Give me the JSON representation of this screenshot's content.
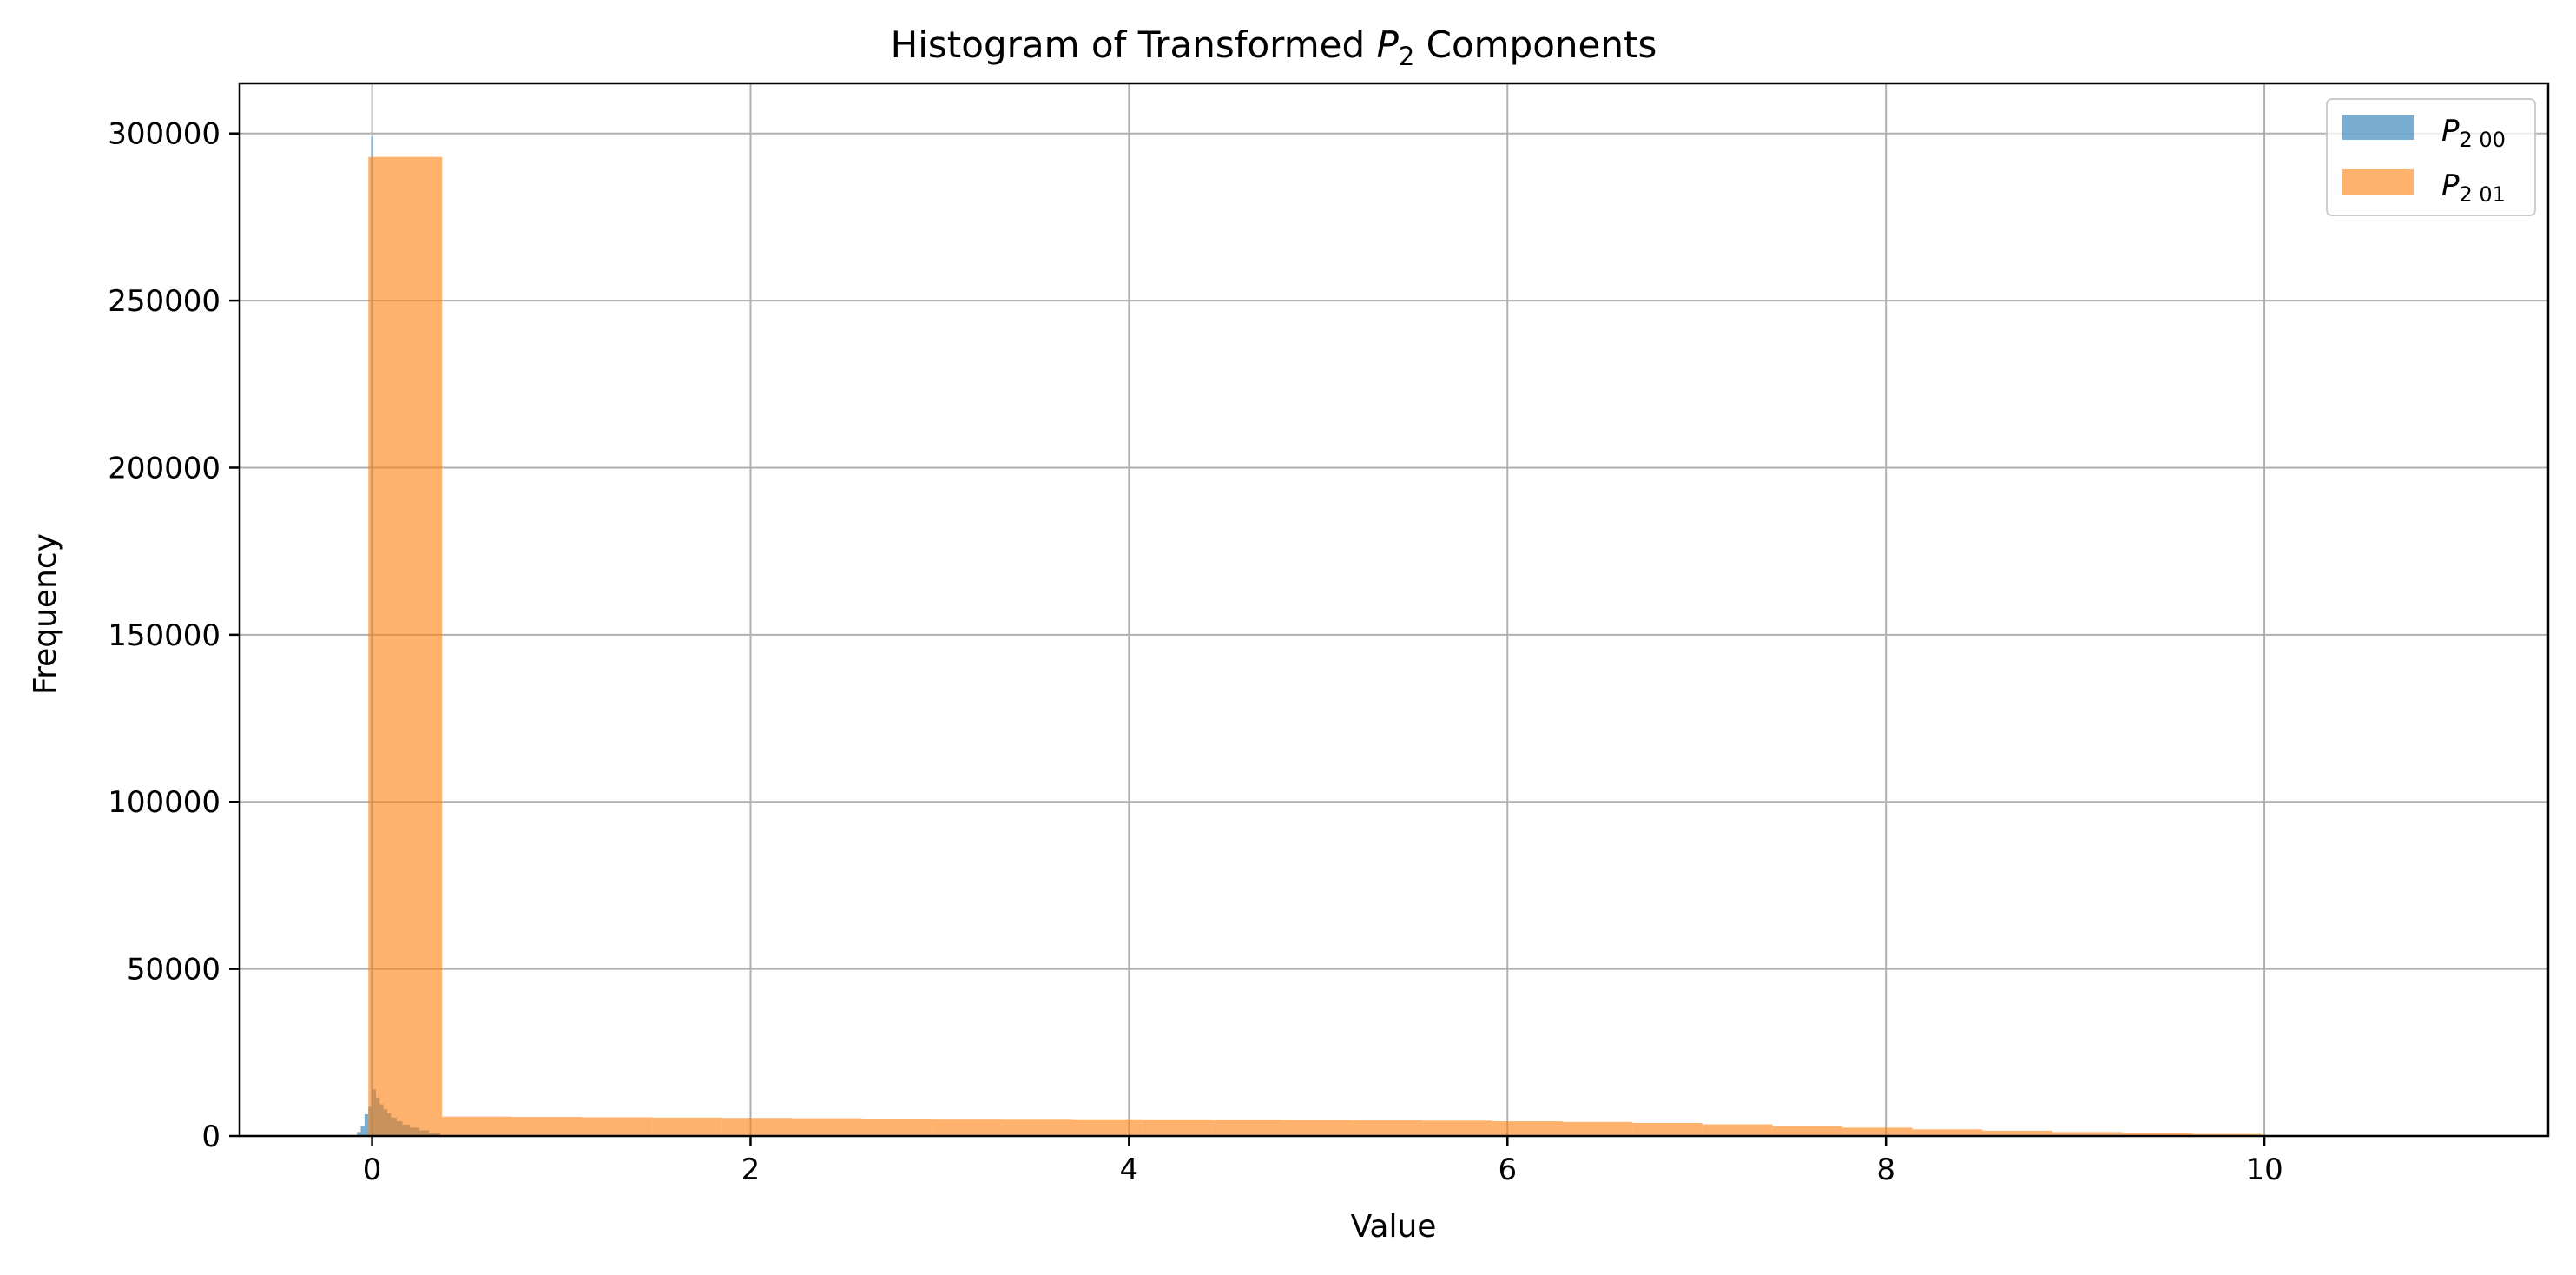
{
  "chart_data": {
    "type": "bar",
    "title_prefix": "Histogram of Transformed ",
    "title_var": "P",
    "title_sub": "2",
    "title_suffix": " Components",
    "xlabel": "Value",
    "ylabel": "Frequency",
    "xlim": [
      -0.7,
      11.5
    ],
    "ylim": [
      0,
      315000
    ],
    "xticks": [
      0,
      2,
      4,
      6,
      8,
      10
    ],
    "yticks": [
      0,
      50000,
      100000,
      150000,
      200000,
      250000,
      300000
    ],
    "grid": true,
    "legend_position": "top-right",
    "series": [
      {
        "name": "P₂ 00",
        "legend_var": "P",
        "legend_sub": "2 00",
        "color": "#1f77b4",
        "opacity": 0.6,
        "bins": [
          {
            "x0": -0.08,
            "x1": -0.06,
            "value": 1200
          },
          {
            "x0": -0.06,
            "x1": -0.04,
            "value": 3000
          },
          {
            "x0": -0.04,
            "x1": -0.02,
            "value": 6500
          },
          {
            "x0": -0.02,
            "x1": -0.005,
            "value": 9000
          },
          {
            "x0": -0.005,
            "x1": 0.005,
            "value": 299000
          },
          {
            "x0": 0.005,
            "x1": 0.02,
            "value": 14000
          },
          {
            "x0": 0.02,
            "x1": 0.04,
            "value": 11500
          },
          {
            "x0": 0.04,
            "x1": 0.06,
            "value": 9500
          },
          {
            "x0": 0.06,
            "x1": 0.08,
            "value": 8000
          },
          {
            "x0": 0.08,
            "x1": 0.1,
            "value": 6800
          },
          {
            "x0": 0.1,
            "x1": 0.13,
            "value": 5500
          },
          {
            "x0": 0.13,
            "x1": 0.16,
            "value": 4400
          },
          {
            "x0": 0.16,
            "x1": 0.2,
            "value": 3400
          },
          {
            "x0": 0.2,
            "x1": 0.25,
            "value": 2500
          },
          {
            "x0": 0.25,
            "x1": 0.3,
            "value": 1700
          },
          {
            "x0": 0.3,
            "x1": 0.36,
            "value": 1000
          }
        ]
      },
      {
        "name": "P₂ 01",
        "legend_var": "P",
        "legend_sub": "2 01",
        "color": "#ff7f0e",
        "opacity": 0.6,
        "bins": [
          {
            "x0": -0.02,
            "x1": 0.37,
            "value": 293000
          },
          {
            "x0": 0.37,
            "x1": 0.74,
            "value": 5800
          },
          {
            "x0": 0.74,
            "x1": 1.11,
            "value": 5700
          },
          {
            "x0": 1.11,
            "x1": 1.48,
            "value": 5600
          },
          {
            "x0": 1.48,
            "x1": 1.85,
            "value": 5500
          },
          {
            "x0": 1.85,
            "x1": 2.22,
            "value": 5400
          },
          {
            "x0": 2.22,
            "x1": 2.59,
            "value": 5300
          },
          {
            "x0": 2.59,
            "x1": 2.96,
            "value": 5200
          },
          {
            "x0": 2.96,
            "x1": 3.33,
            "value": 5150
          },
          {
            "x0": 3.33,
            "x1": 3.7,
            "value": 5100
          },
          {
            "x0": 3.7,
            "x1": 4.07,
            "value": 5000
          },
          {
            "x0": 4.07,
            "x1": 4.44,
            "value": 4950
          },
          {
            "x0": 4.44,
            "x1": 4.81,
            "value": 4900
          },
          {
            "x0": 4.81,
            "x1": 5.18,
            "value": 4800
          },
          {
            "x0": 5.18,
            "x1": 5.55,
            "value": 4700
          },
          {
            "x0": 5.55,
            "x1": 5.92,
            "value": 4600
          },
          {
            "x0": 5.92,
            "x1": 6.29,
            "value": 4400
          },
          {
            "x0": 6.29,
            "x1": 6.66,
            "value": 4200
          },
          {
            "x0": 6.66,
            "x1": 7.03,
            "value": 3900
          },
          {
            "x0": 7.03,
            "x1": 7.4,
            "value": 3500
          },
          {
            "x0": 7.4,
            "x1": 7.77,
            "value": 3000
          },
          {
            "x0": 7.77,
            "x1": 8.14,
            "value": 2500
          },
          {
            "x0": 8.14,
            "x1": 8.51,
            "value": 2000
          },
          {
            "x0": 8.51,
            "x1": 8.88,
            "value": 1600
          },
          {
            "x0": 8.88,
            "x1": 9.25,
            "value": 1200
          },
          {
            "x0": 9.25,
            "x1": 9.62,
            "value": 900
          },
          {
            "x0": 9.62,
            "x1": 9.99,
            "value": 600
          },
          {
            "x0": 9.99,
            "x1": 10.36,
            "value": 300
          },
          {
            "x0": 10.36,
            "x1": 10.73,
            "value": 120
          },
          {
            "x0": 10.73,
            "x1": 11.1,
            "value": 40
          }
        ]
      }
    ]
  }
}
